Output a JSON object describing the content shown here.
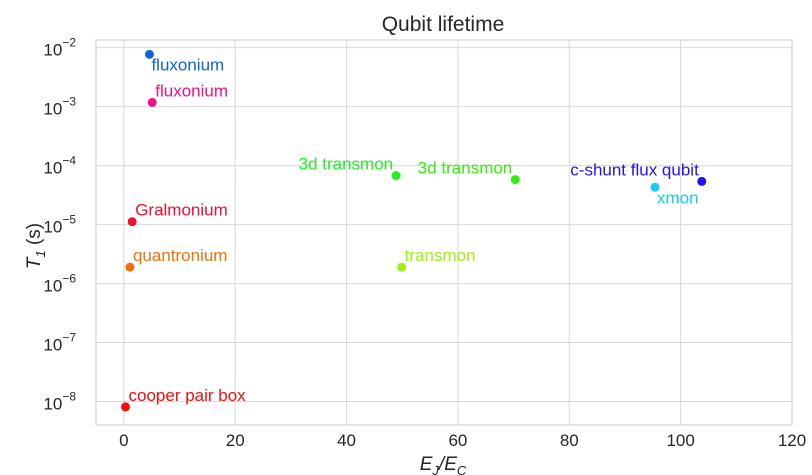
{
  "chart_data": {
    "type": "scatter",
    "title": "Qubit lifetime",
    "xlabel": "E_J/E_C",
    "ylabel": "T_1 (s)",
    "xlim": [
      -5,
      120
    ],
    "ylim": [
      4e-09,
      0.0135
    ],
    "yscale": "log",
    "grid": true,
    "xticks": [
      0,
      20,
      40,
      60,
      80,
      100,
      120
    ],
    "xtick_labels": [
      "0",
      "20",
      "40",
      "60",
      "80",
      "100",
      "120"
    ],
    "yticks": [
      1e-08,
      1e-07,
      1e-06,
      1e-05,
      0.0001,
      0.001,
      0.01
    ],
    "ytick_exponents": [
      "−8",
      "−7",
      "−6",
      "−5",
      "−4",
      "−3",
      "−2"
    ],
    "points": [
      {
        "label": "fluxonium",
        "x": 4.6,
        "y": 0.0077,
        "color": "#1060e0",
        "label_pos": "below-right"
      },
      {
        "label": "fluxonium",
        "x": 5.1,
        "y": 0.00118,
        "color": "#f0108a",
        "label_pos": "above-right"
      },
      {
        "label": "3d transmon",
        "x": 48.9,
        "y": 6.8e-05,
        "color": "#22ee22",
        "label_pos": "above-left"
      },
      {
        "label": "3d transmon",
        "x": 70.3,
        "y": 5.8e-05,
        "color": "#33ee0c",
        "label_pos": "above-left"
      },
      {
        "label": "c-shunt flux qubit",
        "x": 103.8,
        "y": 5.4e-05,
        "color": "#2414e8",
        "label_pos": "above-left"
      },
      {
        "label": "xmon",
        "x": 95.4,
        "y": 4.3e-05,
        "color": "#10d0f0",
        "label_pos": "below-right"
      },
      {
        "label": "Gralmonium",
        "x": 1.5,
        "y": 1.12e-05,
        "color": "#f01030",
        "label_pos": "above-right"
      },
      {
        "label": "quantronium",
        "x": 1.1,
        "y": 1.9e-06,
        "color": "#f07010",
        "label_pos": "above-right"
      },
      {
        "label": "transmon",
        "x": 49.9,
        "y": 1.9e-06,
        "color": "#a0f010",
        "label_pos": "above-right"
      },
      {
        "label": "cooper pair box",
        "x": 0.3,
        "y": 8.1e-09,
        "color": "#f01010",
        "label_pos": "above-right"
      }
    ]
  }
}
